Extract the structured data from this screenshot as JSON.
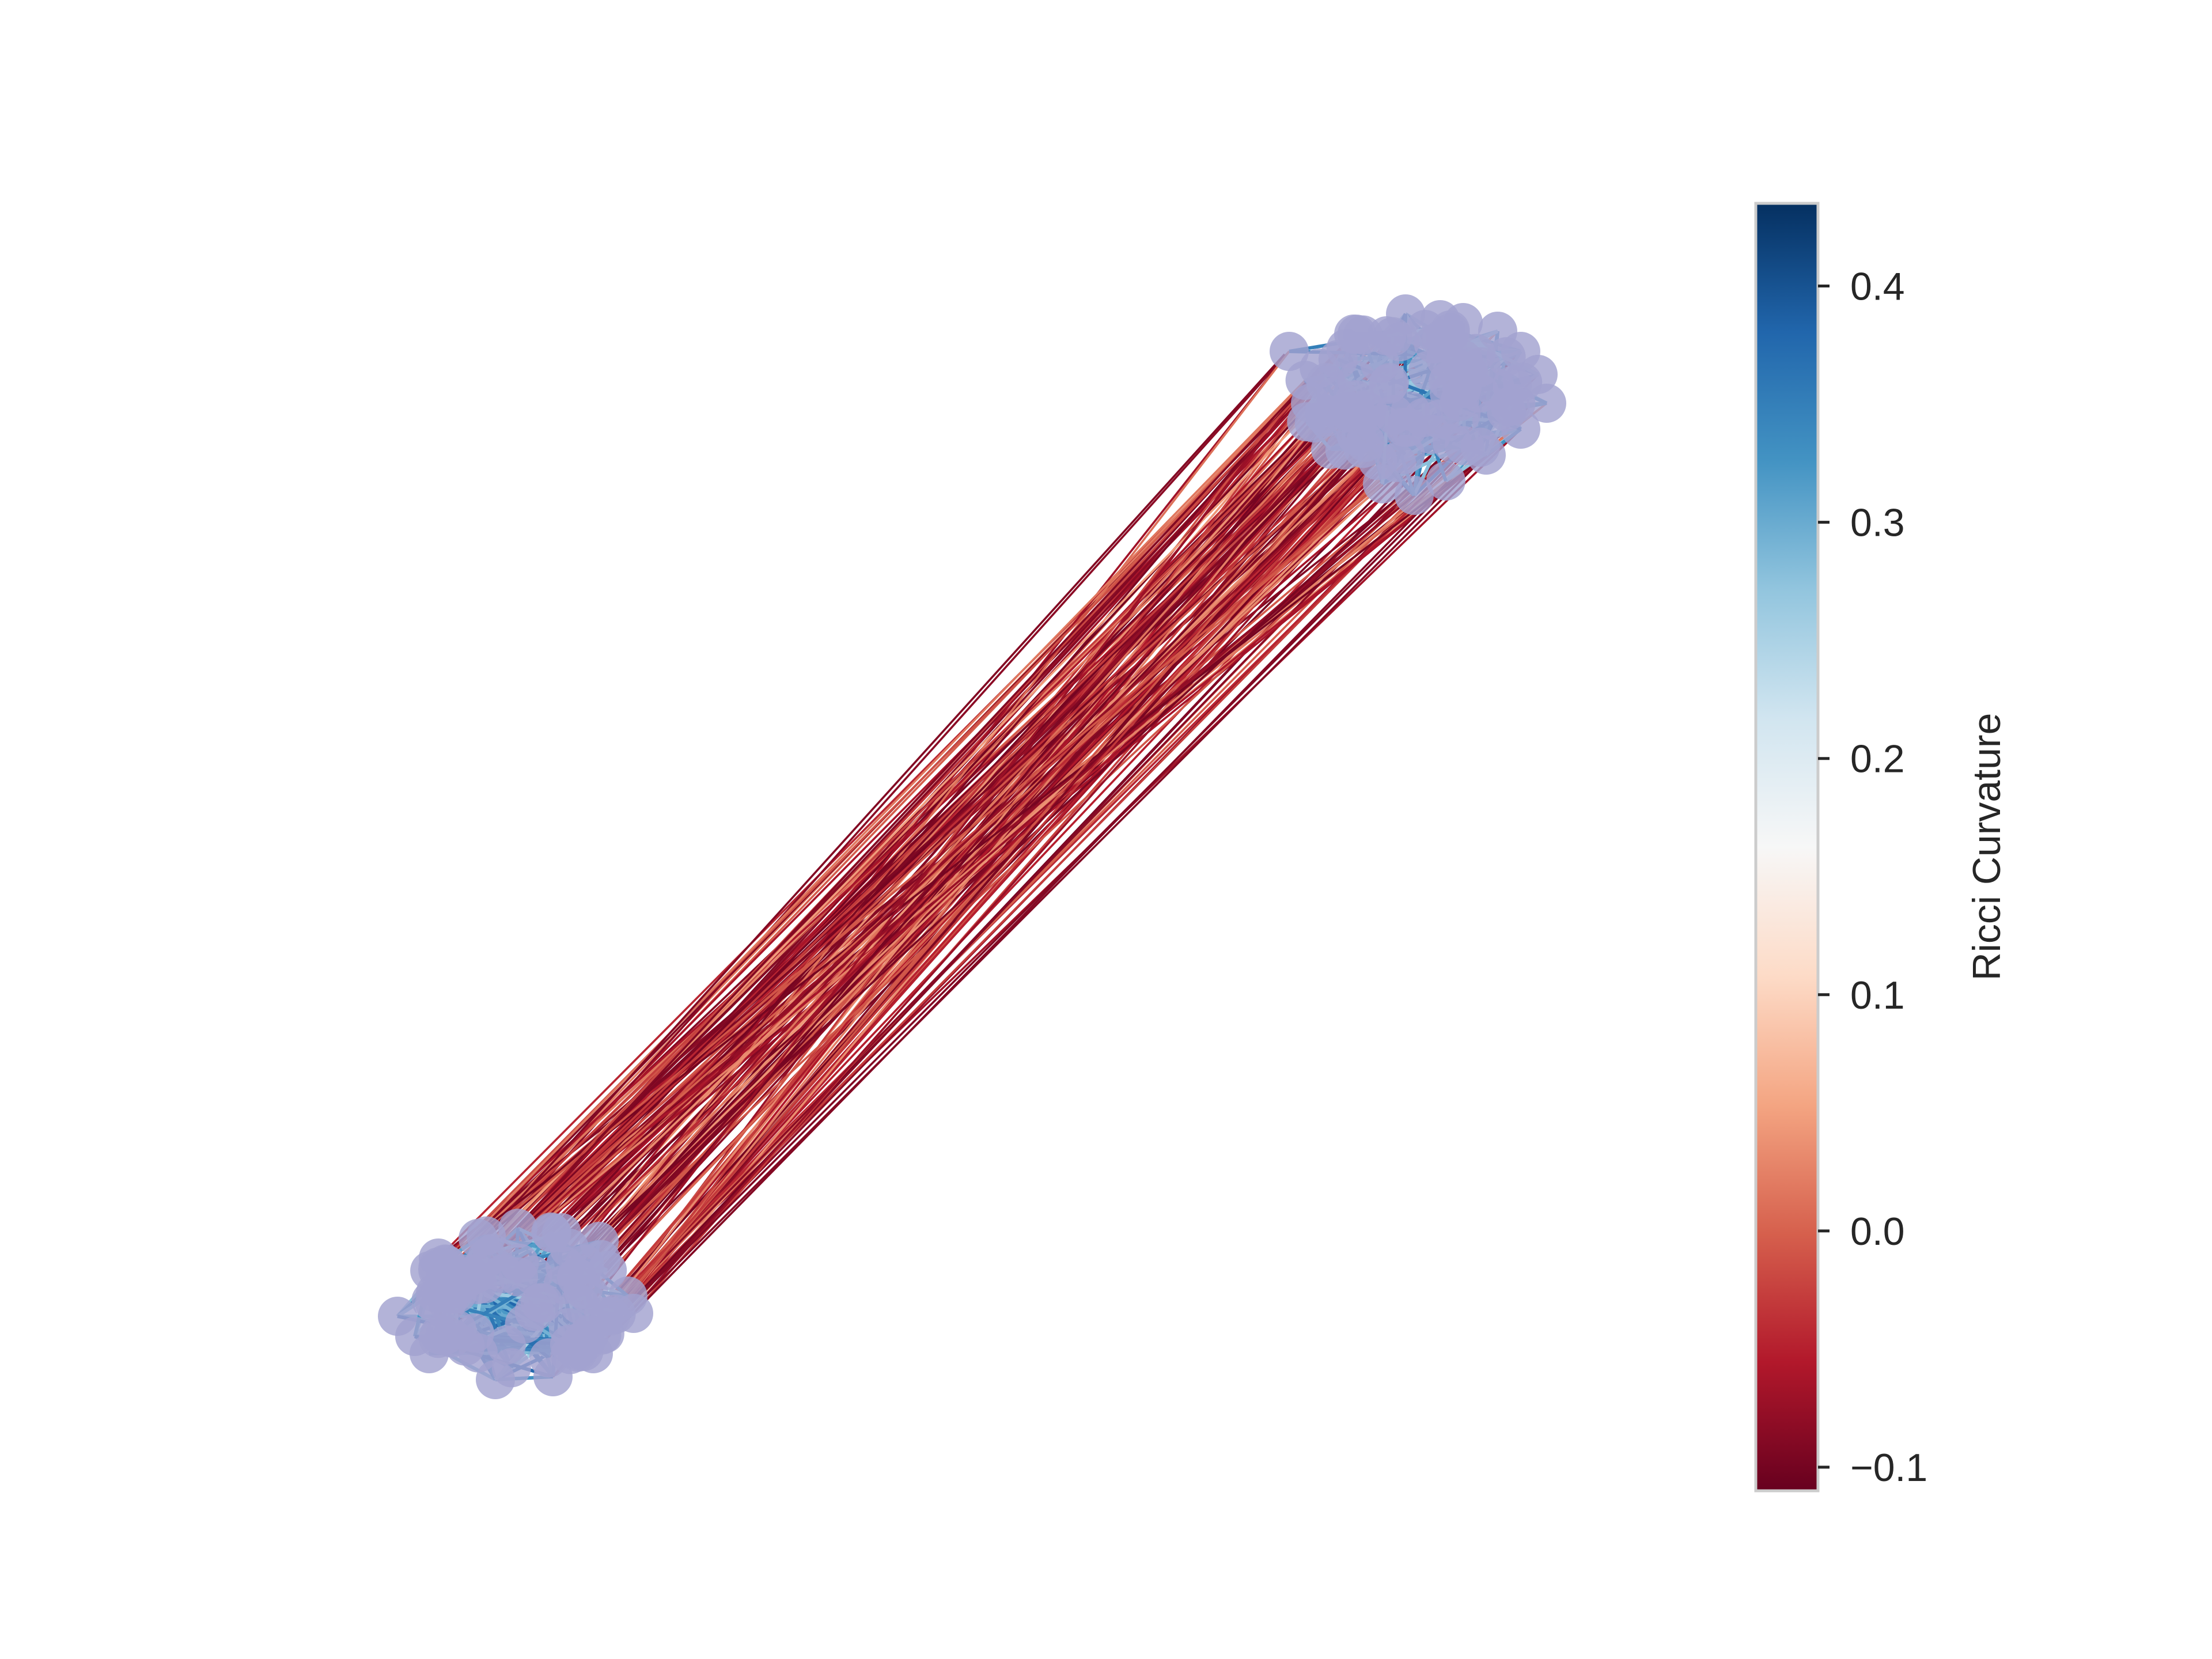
{
  "figure": {
    "colormap": "RdBu",
    "node_color": "#a2a2d0",
    "colorbar": {
      "label": "Ricci Curvature",
      "range": [
        -0.11,
        0.435
      ],
      "ticks": [
        {
          "value": 0.4,
          "label": "0.4"
        },
        {
          "value": 0.3,
          "label": "0.3"
        },
        {
          "value": 0.2,
          "label": "0.2"
        },
        {
          "value": 0.1,
          "label": "0.1"
        },
        {
          "value": 0.0,
          "label": "0.0"
        },
        {
          "value": -0.1,
          "label": "−0.1"
        }
      ],
      "stops": [
        "#67001f",
        "#b2182b",
        "#d6604d",
        "#f4a582",
        "#fddbc7",
        "#f7f7f7",
        "#d1e5f0",
        "#92c5de",
        "#4393c3",
        "#2166ac",
        "#053061"
      ]
    },
    "graph": {
      "communities": 2,
      "intra_community_curvature": [
        0.25,
        0.38
      ],
      "inter_community_curvature": [
        -0.1,
        0.05
      ]
    }
  }
}
